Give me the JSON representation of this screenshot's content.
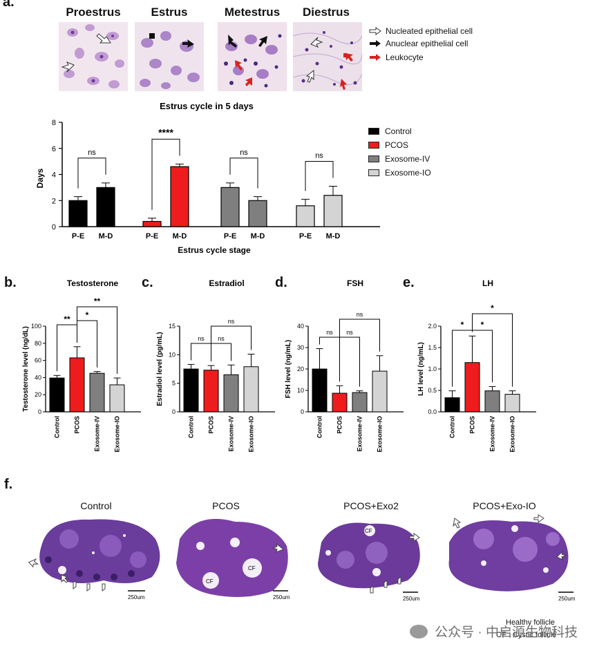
{
  "panel_labels": {
    "a": "a.",
    "b": "b.",
    "c": "c.",
    "d": "d.",
    "e": "e.",
    "f": "f."
  },
  "stages": [
    "Proestrus",
    "Estrus",
    "Metestrus",
    "Diestrus"
  ],
  "cell_legend": [
    {
      "label": "Nucleated epithelial cell",
      "arrow": "white"
    },
    {
      "label": "Anuclear epithelial cell",
      "arrow": "black"
    },
    {
      "label": "Leukocyte",
      "arrow": "red"
    }
  ],
  "colors": {
    "control": "#000000",
    "pcos": "#ee1c1c",
    "exosome_iv": "#7f7f7f",
    "exosome_io": "#d4d4d4",
    "stain_purple": "#7a3fa0",
    "stain_light": "#c8a8d8"
  },
  "ovary_titles": [
    "Control",
    "PCOS",
    "PCOS+Exo2",
    "PCOS+Exo-IO"
  ],
  "scale_bar": "250um",
  "ovary_legend": {
    "healthy": "Healthy follicle",
    "cystic": "CF : Cystic follicle",
    "cf_label": "CF"
  },
  "watermark": "公众号 · 中启源生物科技",
  "chart_data": [
    {
      "type": "bar",
      "title": "Estrus cycle in 5 days",
      "xlabel": "Estrus cycle stage",
      "ylabel": "Days",
      "ylim": [
        0,
        8
      ],
      "yticks": [
        0,
        2,
        4,
        6,
        8
      ],
      "categories": [
        "P-E",
        "M-D"
      ],
      "series": [
        {
          "name": "Control",
          "values": [
            2.0,
            3.0
          ],
          "errors": [
            0.3,
            0.35
          ]
        },
        {
          "name": "PCOS",
          "values": [
            0.4,
            4.6
          ],
          "errors": [
            0.25,
            0.2
          ]
        },
        {
          "name": "Exosome-IV",
          "values": [
            3.0,
            2.0
          ],
          "errors": [
            0.35,
            0.3
          ]
        },
        {
          "name": "Exosome-IO",
          "values": [
            1.6,
            2.4
          ],
          "errors": [
            0.5,
            0.7
          ]
        }
      ],
      "significance": [
        "ns",
        "****",
        "ns",
        "ns"
      ],
      "legend_placement": "right"
    },
    {
      "type": "bar",
      "title": "Testosterone",
      "ylabel": "Testosterone level (ng/dL)",
      "ylim": [
        0,
        100
      ],
      "yticks": [
        0,
        20,
        40,
        60,
        80,
        100
      ],
      "categories": [
        "Control",
        "PCOS",
        "Exosome-IV",
        "Exosome-IO"
      ],
      "values": [
        39.5,
        63,
        45,
        31.5
      ],
      "errors": [
        3,
        13,
        2,
        8
      ],
      "significance": [
        "**",
        "*",
        "**"
      ]
    },
    {
      "type": "bar",
      "title": "Estradiol",
      "ylabel": "Estradiol level (pg/mL)",
      "ylim": [
        0,
        15
      ],
      "yticks": [
        0,
        5,
        10,
        15
      ],
      "categories": [
        "Control",
        "PCOS",
        "Exosome-IV",
        "Exosome-IO"
      ],
      "values": [
        7.5,
        7.3,
        6.5,
        7.9
      ],
      "errors": [
        0.8,
        0.8,
        1.7,
        2.2
      ],
      "significance": [
        "ns",
        "ns",
        "ns"
      ]
    },
    {
      "type": "bar",
      "title": "FSH",
      "ylabel": "FSH level (ng/mL)",
      "ylim": [
        0,
        40
      ],
      "yticks": [
        0,
        10,
        20,
        30,
        40
      ],
      "categories": [
        "Control",
        "PCOS",
        "Exosome-IV",
        "Exosome-IO"
      ],
      "values": [
        20,
        8.7,
        9,
        19
      ],
      "errors": [
        9.5,
        3.5,
        0.8,
        7.2
      ],
      "significance": [
        "ns",
        "ns",
        "ns"
      ]
    },
    {
      "type": "bar",
      "title": "LH",
      "ylabel": "LH level (ng/mL)",
      "ylim": [
        0,
        2.0
      ],
      "yticks": [
        0.0,
        0.5,
        1.0,
        1.5,
        2.0
      ],
      "categories": [
        "Control",
        "PCOS",
        "Exosome-IV",
        "Exosome-IO"
      ],
      "values": [
        0.33,
        1.15,
        0.49,
        0.41
      ],
      "errors": [
        0.16,
        0.62,
        0.1,
        0.08
      ],
      "significance": [
        "*",
        "*",
        "*"
      ]
    }
  ]
}
